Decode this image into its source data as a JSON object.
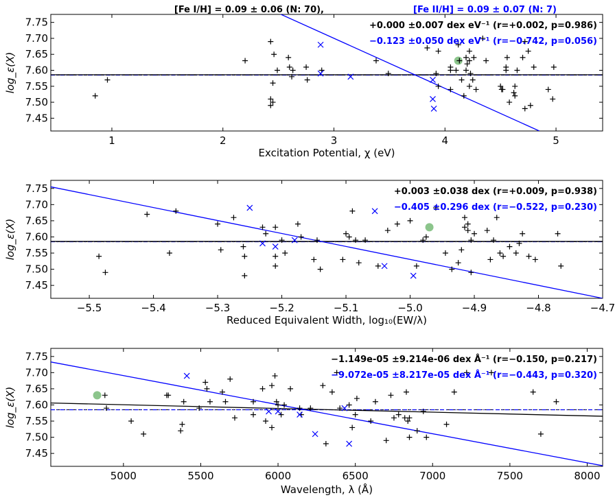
{
  "title": {
    "fe1": "[Fe I/H] = 0.09 ± 0.06 (N: 70),",
    "fe2": "[Fe II/H] = 0.09 ± 0.07 (N: 7)"
  },
  "colors": {
    "fe1": "#000000",
    "fe2": "#0000ff",
    "highlight": "#7fbf7f"
  },
  "chart_data": [
    {
      "type": "scatter",
      "xlabel": "Excitation Potential, χ (eV)",
      "ylabel": "log_ε(X)",
      "xlim": [
        0.45,
        5.42
      ],
      "ylim": [
        7.41,
        7.775
      ],
      "xticks": [
        1,
        2,
        3,
        4,
        5
      ],
      "xtick_labels": [
        "1",
        "2",
        "3",
        "4",
        "5"
      ],
      "yticks": [
        7.45,
        7.5,
        7.55,
        7.6,
        7.65,
        7.7,
        7.75
      ],
      "ytick_labels": [
        "7.45",
        "7.50",
        "7.55",
        "7.60",
        "7.65",
        "7.70",
        "7.75"
      ],
      "annotations": [
        "+0.000 ±0.007 dex eV⁻¹ (r=+0.002, p=0.986)",
        "−0.123 ±0.050 dex eV⁻¹ (r=−0.742, p=0.056)"
      ],
      "fit_lines": [
        {
          "x": [
            0.45,
            5.42
          ],
          "y": [
            7.586,
            7.586
          ]
        },
        {
          "x": [
            2.3,
            4.85
          ],
          "y": [
            7.81,
            7.41
          ]
        }
      ],
      "mean_lines": [
        7.585,
        7.585
      ],
      "highlight": [
        4.12,
        7.63
      ],
      "series": [
        {
          "marker": "plus",
          "points": [
            [
              0.85,
              7.52
            ],
            [
              0.96,
              7.57
            ],
            [
              2.2,
              7.63
            ],
            [
              2.43,
              7.69
            ],
            [
              2.43,
              7.51
            ],
            [
              2.45,
              7.56
            ],
            [
              2.45,
              7.5
            ],
            [
              2.43,
              7.49
            ],
            [
              2.46,
              7.65
            ],
            [
              2.49,
              7.6
            ],
            [
              2.59,
              7.64
            ],
            [
              2.6,
              7.61
            ],
            [
              2.62,
              7.58
            ],
            [
              2.63,
              7.6
            ],
            [
              2.75,
              7.61
            ],
            [
              2.76,
              7.57
            ],
            [
              2.89,
              7.6
            ],
            [
              3.38,
              7.63
            ],
            [
              3.49,
              7.59
            ],
            [
              3.84,
              7.67
            ],
            [
              3.92,
              7.59
            ],
            [
              3.94,
              7.66
            ],
            [
              3.94,
              7.55
            ],
            [
              4.05,
              7.6
            ],
            [
              4.05,
              7.61
            ],
            [
              4.05,
              7.54
            ],
            [
              4.1,
              7.6
            ],
            [
              4.12,
              7.68
            ],
            [
              4.13,
              7.63
            ],
            [
              4.15,
              7.57
            ],
            [
              4.17,
              7.52
            ],
            [
              4.19,
              7.64
            ],
            [
              4.19,
              7.6
            ],
            [
              4.2,
              7.62
            ],
            [
              4.22,
              7.66
            ],
            [
              4.22,
              7.63
            ],
            [
              4.23,
              7.59
            ],
            [
              4.22,
              7.55
            ],
            [
              4.25,
              7.57
            ],
            [
              4.26,
              7.64
            ],
            [
              4.28,
              7.54
            ],
            [
              4.37,
              7.63
            ],
            [
              4.34,
              7.7
            ],
            [
              4.5,
              7.55
            ],
            [
              4.51,
              7.54
            ],
            [
              4.52,
              7.54
            ],
            [
              4.55,
              7.6
            ],
            [
              4.55,
              7.61
            ],
            [
              4.56,
              7.64
            ],
            [
              4.58,
              7.5
            ],
            [
              4.62,
              7.53
            ],
            [
              4.63,
              7.55
            ],
            [
              4.63,
              7.52
            ],
            [
              4.65,
              7.6
            ],
            [
              4.7,
              7.64
            ],
            [
              4.72,
              7.69
            ],
            [
              4.72,
              7.48
            ],
            [
              4.77,
              7.49
            ],
            [
              4.75,
              7.66
            ],
            [
              4.8,
              7.61
            ],
            [
              4.93,
              7.54
            ],
            [
              4.97,
              7.51
            ],
            [
              4.98,
              7.61
            ]
          ]
        },
        {
          "marker": "x",
          "points": [
            [
              2.88,
              7.68
            ],
            [
              2.88,
              7.59
            ],
            [
              3.15,
              7.58
            ],
            [
              3.89,
              7.57
            ],
            [
              3.89,
              7.51
            ],
            [
              3.9,
              7.48
            ]
          ]
        }
      ]
    },
    {
      "type": "scatter",
      "xlabel": "Reduced Equivalent Width, log₁₀(EW/λ)",
      "ylabel": "log_ε(X)",
      "xlim": [
        -5.56,
        -4.7
      ],
      "ylim": [
        7.41,
        7.775
      ],
      "xticks": [
        -5.5,
        -5.4,
        -5.3,
        -5.2,
        -5.1,
        -5.0,
        -4.9,
        -4.8,
        -4.7
      ],
      "xtick_labels": [
        "−5.5",
        "−5.4",
        "−5.3",
        "−5.2",
        "−5.1",
        "−5.0",
        "−4.9",
        "−4.8",
        "−4.7"
      ],
      "yticks": [
        7.45,
        7.5,
        7.55,
        7.6,
        7.65,
        7.7,
        7.75
      ],
      "ytick_labels": [
        "7.45",
        "7.50",
        "7.55",
        "7.60",
        "7.65",
        "7.70",
        "7.75"
      ],
      "annotations": [
        "+0.003 ±0.038 dex (r=+0.009, p=0.938)",
        "−0.405 ±0.296 dex (r=−0.522, p=0.230)"
      ],
      "fit_lines": [
        {
          "x": [
            -5.56,
            -4.7
          ],
          "y": [
            7.586,
            7.586
          ]
        },
        {
          "x": [
            -5.56,
            -4.7
          ],
          "y": [
            7.755,
            7.41
          ]
        }
      ],
      "mean_lines": [
        7.585,
        7.585
      ],
      "highlight": [
        -4.97,
        7.63
      ],
      "series": [
        {
          "marker": "plus",
          "points": [
            [
              -5.485,
              7.54
            ],
            [
              -5.475,
              7.49
            ],
            [
              -5.41,
              7.67
            ],
            [
              -5.375,
              7.55
            ],
            [
              -5.365,
              7.68
            ],
            [
              -5.3,
              7.64
            ],
            [
              -5.295,
              7.56
            ],
            [
              -5.275,
              7.66
            ],
            [
              -5.26,
              7.57
            ],
            [
              -5.258,
              7.54
            ],
            [
              -5.258,
              7.48
            ],
            [
              -5.23,
              7.63
            ],
            [
              -5.225,
              7.61
            ],
            [
              -5.21,
              7.51
            ],
            [
              -5.21,
              7.54
            ],
            [
              -5.21,
              7.63
            ],
            [
              -5.2,
              7.59
            ],
            [
              -5.195,
              7.55
            ],
            [
              -5.175,
              7.64
            ],
            [
              -5.17,
              7.6
            ],
            [
              -5.15,
              7.53
            ],
            [
              -5.145,
              7.59
            ],
            [
              -5.14,
              7.5
            ],
            [
              -5.105,
              7.53
            ],
            [
              -5.1,
              7.61
            ],
            [
              -5.095,
              7.6
            ],
            [
              -5.09,
              7.68
            ],
            [
              -5.085,
              7.59
            ],
            [
              -5.08,
              7.52
            ],
            [
              -5.07,
              7.59
            ],
            [
              -5.05,
              7.51
            ],
            [
              -5.035,
              7.62
            ],
            [
              -5.02,
              7.64
            ],
            [
              -5.0,
              7.65
            ],
            [
              -4.99,
              7.51
            ],
            [
              -4.98,
              7.59
            ],
            [
              -4.975,
              7.6
            ],
            [
              -4.96,
              7.69
            ],
            [
              -4.945,
              7.55
            ],
            [
              -4.935,
              7.5
            ],
            [
              -4.925,
              7.52
            ],
            [
              -4.92,
              7.56
            ],
            [
              -4.915,
              7.66
            ],
            [
              -4.915,
              7.63
            ],
            [
              -4.91,
              7.64
            ],
            [
              -4.91,
              7.62
            ],
            [
              -4.905,
              7.59
            ],
            [
              -4.905,
              7.49
            ],
            [
              -4.9,
              7.61
            ],
            [
              -4.88,
              7.62
            ],
            [
              -4.875,
              7.53
            ],
            [
              -4.87,
              7.59
            ],
            [
              -4.865,
              7.66
            ],
            [
              -4.86,
              7.55
            ],
            [
              -4.855,
              7.54
            ],
            [
              -4.845,
              7.57
            ],
            [
              -4.835,
              7.55
            ],
            [
              -4.83,
              7.58
            ],
            [
              -4.825,
              7.61
            ],
            [
              -4.815,
              7.54
            ],
            [
              -4.805,
              7.53
            ],
            [
              -4.77,
              7.61
            ],
            [
              -4.765,
              7.51
            ]
          ]
        },
        {
          "marker": "x",
          "points": [
            [
              -5.25,
              7.69
            ],
            [
              -5.23,
              7.58
            ],
            [
              -5.21,
              7.57
            ],
            [
              -5.18,
              7.59
            ],
            [
              -5.055,
              7.68
            ],
            [
              -5.04,
              7.51
            ],
            [
              -4.995,
              7.48
            ]
          ]
        }
      ]
    },
    {
      "type": "scatter",
      "xlabel": "Wavelength, λ (Å)",
      "ylabel": "log_ε(X)",
      "xlim": [
        4530,
        8100
      ],
      "ylim": [
        7.41,
        7.775
      ],
      "xticks": [
        5000,
        5500,
        6000,
        6500,
        7000,
        7500,
        8000
      ],
      "xtick_labels": [
        "5000",
        "5500",
        "6000",
        "6500",
        "7000",
        "7500",
        "8000"
      ],
      "yticks": [
        7.45,
        7.5,
        7.55,
        7.6,
        7.65,
        7.7,
        7.75
      ],
      "ytick_labels": [
        "7.45",
        "7.50",
        "7.55",
        "7.60",
        "7.65",
        "7.70",
        "7.75"
      ],
      "annotations": [
        "−1.149e-05 ±9.214e-06 dex Å⁻¹ (r=−0.150, p=0.217)",
        "−9.072e-05 ±8.217e-05 dex Å⁻¹ (r=−0.443, p=0.320)"
      ],
      "fit_lines": [
        {
          "x": [
            4530,
            8100
          ],
          "y": [
            7.606,
            7.565
          ]
        },
        {
          "x": [
            4530,
            8100
          ],
          "y": [
            7.733,
            7.412
          ]
        }
      ],
      "mean_lines": [
        7.585,
        7.585
      ],
      "highlight": [
        4830,
        7.63
      ],
      "series": [
        {
          "marker": "plus",
          "points": [
            [
              4880,
              7.63
            ],
            [
              4890,
              7.59
            ],
            [
              5050,
              7.55
            ],
            [
              5130,
              7.51
            ],
            [
              5280,
              7.63
            ],
            [
              5290,
              7.63
            ],
            [
              5370,
              7.52
            ],
            [
              5380,
              7.54
            ],
            [
              5390,
              7.61
            ],
            [
              5490,
              7.59
            ],
            [
              5530,
              7.67
            ],
            [
              5540,
              7.65
            ],
            [
              5560,
              7.61
            ],
            [
              5640,
              7.64
            ],
            [
              5660,
              7.61
            ],
            [
              5690,
              7.68
            ],
            [
              5720,
              7.56
            ],
            [
              5840,
              7.61
            ],
            [
              5900,
              7.65
            ],
            [
              5920,
              7.55
            ],
            [
              5960,
              7.66
            ],
            [
              5960,
              7.53
            ],
            [
              5980,
              7.69
            ],
            [
              5990,
              7.61
            ],
            [
              6000,
              7.6
            ],
            [
              6020,
              7.57
            ],
            [
              6040,
              7.6
            ],
            [
              6080,
              7.65
            ],
            [
              6140,
              7.59
            ],
            [
              6150,
              7.57
            ],
            [
              6210,
              7.59
            ],
            [
              6290,
              7.66
            ],
            [
              6310,
              7.48
            ],
            [
              6350,
              7.64
            ],
            [
              6380,
              7.7
            ],
            [
              6400,
              7.59
            ],
            [
              6460,
              7.6
            ],
            [
              6500,
              7.57
            ],
            [
              6510,
              7.62
            ],
            [
              6600,
              7.55
            ],
            [
              6630,
              7.61
            ],
            [
              6700,
              7.49
            ],
            [
              6730,
              7.63
            ],
            [
              6750,
              7.56
            ],
            [
              6780,
              7.57
            ],
            [
              6820,
              7.56
            ],
            [
              6830,
              7.64
            ],
            [
              6840,
              7.55
            ],
            [
              6850,
              7.56
            ],
            [
              6850,
              7.5
            ],
            [
              6900,
              7.52
            ],
            [
              6940,
              7.58
            ],
            [
              6960,
              7.5
            ],
            [
              7090,
              7.54
            ],
            [
              7140,
              7.64
            ],
            [
              7220,
              7.7
            ],
            [
              7380,
              7.7
            ],
            [
              7650,
              7.64
            ],
            [
              7700,
              7.51
            ],
            [
              7800,
              7.61
            ],
            [
              5840,
              7.57
            ],
            [
              6480,
              7.53
            ]
          ]
        },
        {
          "marker": "x",
          "points": [
            [
              5410,
              7.69
            ],
            [
              5940,
              7.58
            ],
            [
              6000,
              7.58
            ],
            [
              6140,
              7.57
            ],
            [
              6240,
              7.51
            ],
            [
              6430,
              7.59
            ],
            [
              6460,
              7.48
            ]
          ]
        }
      ]
    }
  ]
}
